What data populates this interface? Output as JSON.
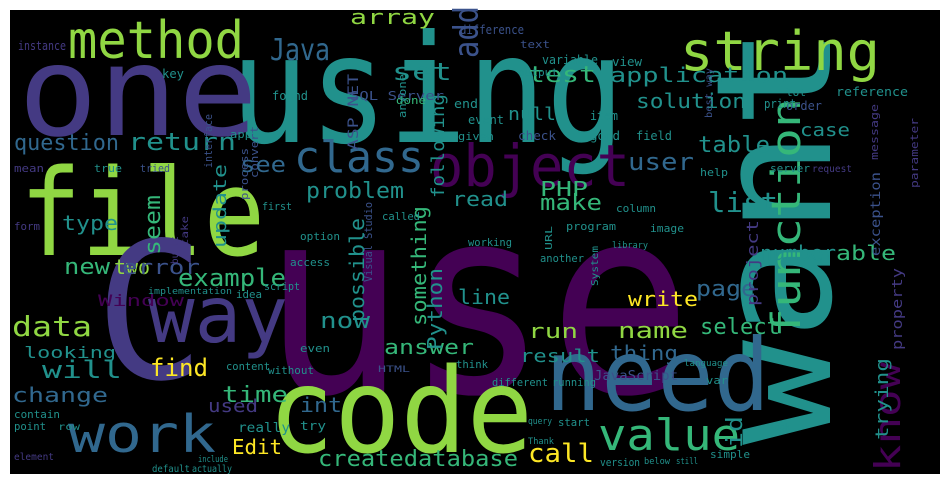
{
  "palette": {
    "background": "#000000",
    "frame": "#ffffff",
    "purple": "#443a83",
    "teal": "#21918c",
    "blue": "#31688e",
    "green": "#35b779",
    "lime": "#90d743",
    "yellow": "#fde725",
    "violet": "#440154",
    "darkblue": "#3b528b"
  },
  "words": [
    {
      "text": "use",
      "color": "violet"
    },
    {
      "text": "using",
      "color": "teal"
    },
    {
      "text": "want",
      "color": "teal"
    },
    {
      "text": "one",
      "color": "purple"
    },
    {
      "text": "file",
      "color": "lime"
    },
    {
      "text": "code",
      "color": "lime"
    },
    {
      "text": "C",
      "color": "purple"
    },
    {
      "text": "need",
      "color": "blue"
    },
    {
      "text": "way",
      "color": "purple"
    },
    {
      "text": "method",
      "color": "lime"
    },
    {
      "text": "string",
      "color": "lime"
    },
    {
      "text": "object",
      "color": "violet"
    },
    {
      "text": "class",
      "color": "blue"
    },
    {
      "text": "function",
      "color": "green"
    },
    {
      "text": "work",
      "color": "blue"
    },
    {
      "text": "value",
      "color": "green"
    },
    {
      "text": "know",
      "color": "violet"
    },
    {
      "text": "Java",
      "color": "blue"
    },
    {
      "text": "add",
      "color": "darkblue"
    },
    {
      "text": "array",
      "color": "lime"
    },
    {
      "text": "set",
      "color": "teal"
    },
    {
      "text": "test",
      "color": "green"
    },
    {
      "text": "application",
      "color": "teal"
    },
    {
      "text": "solution",
      "color": "teal"
    },
    {
      "text": "question",
      "color": "blue"
    },
    {
      "text": "return",
      "color": "teal"
    },
    {
      "text": "see",
      "color": "blue"
    },
    {
      "text": "problem",
      "color": "teal"
    },
    {
      "text": "table",
      "color": "teal"
    },
    {
      "text": "list",
      "color": "teal"
    },
    {
      "text": "user",
      "color": "blue"
    },
    {
      "text": "example",
      "color": "green"
    },
    {
      "text": "type",
      "color": "teal"
    },
    {
      "text": "new",
      "color": "green"
    },
    {
      "text": "two",
      "color": "lime"
    },
    {
      "text": "error",
      "color": "darkblue"
    },
    {
      "text": "data",
      "color": "lime"
    },
    {
      "text": "will",
      "color": "teal"
    },
    {
      "text": "change",
      "color": "blue"
    },
    {
      "text": "looking",
      "color": "teal"
    },
    {
      "text": "find",
      "color": "yellow"
    },
    {
      "text": "Window",
      "color": "violet"
    },
    {
      "text": "time",
      "color": "green"
    },
    {
      "text": "Edit",
      "color": "yellow"
    },
    {
      "text": "createdatabase",
      "color": "green"
    },
    {
      "text": "call",
      "color": "yellow"
    },
    {
      "text": "id",
      "color": "teal"
    },
    {
      "text": "page",
      "color": "blue"
    },
    {
      "text": "select",
      "color": "green"
    },
    {
      "text": "name",
      "color": "lime"
    },
    {
      "text": "run",
      "color": "lime"
    },
    {
      "text": "write",
      "color": "yellow"
    },
    {
      "text": "answer",
      "color": "green"
    },
    {
      "text": "result",
      "color": "teal"
    },
    {
      "text": "number",
      "color": "teal"
    },
    {
      "text": "able",
      "color": "green"
    },
    {
      "text": "make",
      "color": "green"
    },
    {
      "text": "read",
      "color": "teal"
    },
    {
      "text": "PHP",
      "color": "green"
    },
    {
      "text": "Python",
      "color": "teal"
    },
    {
      "text": "line",
      "color": "teal"
    },
    {
      "text": "thing",
      "color": "blue"
    },
    {
      "text": "now",
      "color": "teal"
    },
    {
      "text": "int",
      "color": "blue"
    },
    {
      "text": "update",
      "color": "teal"
    },
    {
      "text": "seem",
      "color": "green"
    },
    {
      "text": "possible",
      "color": "teal"
    },
    {
      "text": "something",
      "color": "green"
    },
    {
      "text": "following",
      "color": "teal"
    },
    {
      "text": "null",
      "color": "teal"
    },
    {
      "text": "case",
      "color": "teal"
    },
    {
      "text": "project",
      "color": "purple"
    },
    {
      "text": "trying",
      "color": "teal"
    },
    {
      "text": "property",
      "color": "purple"
    },
    {
      "text": "ASP NET",
      "color": "darkblue"
    },
    {
      "text": "SQL Server",
      "color": "darkblue"
    },
    {
      "text": "Visual Studio",
      "color": "darkblue"
    },
    {
      "text": "JavaScript",
      "color": "darkblue"
    },
    {
      "text": "exception",
      "color": "darkblue"
    },
    {
      "text": "used",
      "color": "purple"
    },
    {
      "text": "really",
      "color": "teal"
    },
    {
      "text": "try",
      "color": "teal"
    },
    {
      "text": "HTML",
      "color": "darkblue"
    },
    {
      "text": "instance",
      "color": "purple"
    },
    {
      "text": "key",
      "color": "teal"
    },
    {
      "text": "difference",
      "color": "darkblue"
    },
    {
      "text": "variable",
      "color": "teal"
    },
    {
      "text": "view",
      "color": "teal"
    },
    {
      "text": "text",
      "color": "darkblue"
    },
    {
      "text": "output",
      "color": "teal"
    },
    {
      "text": "done",
      "color": "green"
    },
    {
      "text": "end",
      "color": "teal"
    },
    {
      "text": "event",
      "color": "teal"
    },
    {
      "text": "item",
      "color": "teal"
    },
    {
      "text": "check",
      "color": "darkblue"
    },
    {
      "text": "given",
      "color": "teal"
    },
    {
      "text": "good",
      "color": "teal"
    },
    {
      "text": "field",
      "color": "teal"
    },
    {
      "text": "order",
      "color": "darkblue"
    },
    {
      "text": "reference",
      "color": "teal"
    },
    {
      "text": "message",
      "color": "purple"
    },
    {
      "text": "parameter",
      "color": "purple"
    },
    {
      "text": "best way",
      "color": "darkblue"
    },
    {
      "text": "print",
      "color": "teal"
    },
    {
      "text": "lot",
      "color": "teal"
    },
    {
      "text": "found",
      "color": "teal"
    },
    {
      "text": "interface",
      "color": "darkblue"
    },
    {
      "text": "convert",
      "color": "darkblue"
    },
    {
      "text": "process",
      "color": "darkblue"
    },
    {
      "text": "anyone",
      "color": "teal"
    },
    {
      "text": "app",
      "color": "teal"
    },
    {
      "text": "tried",
      "color": "darkblue"
    },
    {
      "text": "true",
      "color": "teal"
    },
    {
      "text": "mean",
      "color": "purple"
    },
    {
      "text": "form",
      "color": "purple"
    },
    {
      "text": "take",
      "color": "purple"
    },
    {
      "text": "built",
      "color": "purple"
    },
    {
      "text": "first",
      "color": "teal"
    },
    {
      "text": "option",
      "color": "teal"
    },
    {
      "text": "called",
      "color": "teal"
    },
    {
      "text": "help",
      "color": "teal"
    },
    {
      "text": "server",
      "color": "teal"
    },
    {
      "text": "request",
      "color": "purple"
    },
    {
      "text": "program",
      "color": "teal"
    },
    {
      "text": "column",
      "color": "teal"
    },
    {
      "text": "image",
      "color": "teal"
    },
    {
      "text": "access",
      "color": "teal"
    },
    {
      "text": "URL",
      "color": "teal"
    },
    {
      "text": "another",
      "color": "teal"
    },
    {
      "text": "working",
      "color": "teal"
    },
    {
      "text": "library",
      "color": "teal"
    },
    {
      "text": "System",
      "color": "teal"
    },
    {
      "text": "script",
      "color": "teal"
    },
    {
      "text": "idea",
      "color": "teal"
    },
    {
      "text": "implementation",
      "color": "teal"
    },
    {
      "text": "even",
      "color": "teal"
    },
    {
      "text": "without",
      "color": "teal"
    },
    {
      "text": "content",
      "color": "teal"
    },
    {
      "text": "think",
      "color": "teal"
    },
    {
      "text": "different",
      "color": "teal"
    },
    {
      "text": "running",
      "color": "teal"
    },
    {
      "text": "language",
      "color": "teal"
    },
    {
      "text": "var",
      "color": "teal"
    },
    {
      "text": "point",
      "color": "teal"
    },
    {
      "text": "contain",
      "color": "teal"
    },
    {
      "text": "row",
      "color": "teal"
    },
    {
      "text": "element",
      "color": "purple"
    },
    {
      "text": "default",
      "color": "teal"
    },
    {
      "text": "actually",
      "color": "teal"
    },
    {
      "text": "start",
      "color": "teal"
    },
    {
      "text": "version",
      "color": "teal"
    },
    {
      "text": "simple",
      "color": "teal"
    },
    {
      "text": "below",
      "color": "teal"
    },
    {
      "text": "still",
      "color": "teal"
    },
    {
      "text": "Thank",
      "color": "teal"
    },
    {
      "text": "include",
      "color": "teal"
    },
    {
      "text": "query",
      "color": "teal"
    },
    {
      "text": "look",
      "color": "teal"
    }
  ]
}
